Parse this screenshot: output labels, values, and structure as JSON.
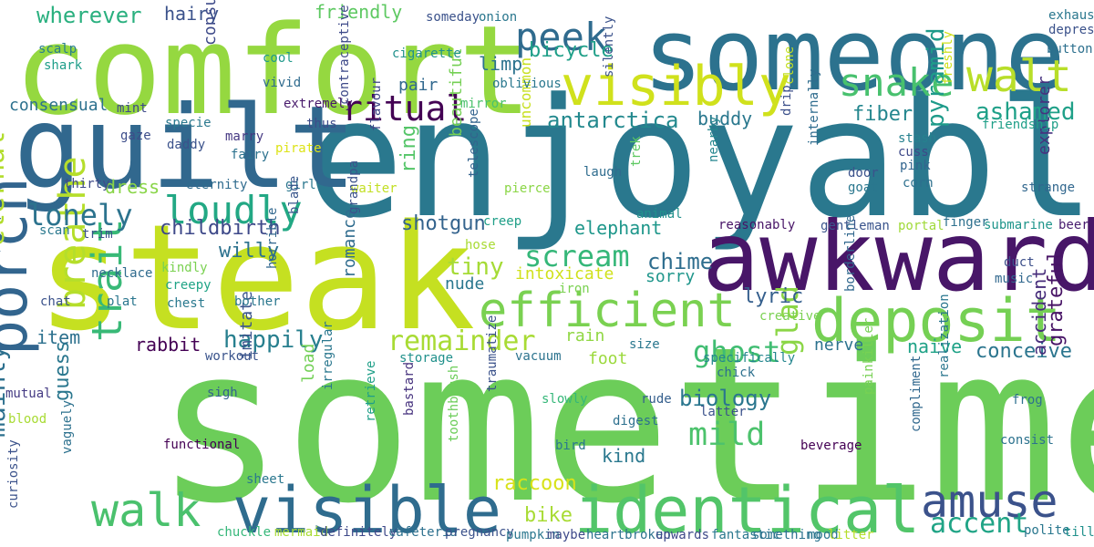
{
  "words": [
    {
      "text": "sometime",
      "color": "#6ccd59"
    },
    {
      "text": "enjoyable",
      "color": "#2a788e"
    },
    {
      "text": "steak",
      "color": "#c5e021"
    },
    {
      "text": "comfort",
      "color": "#95d840"
    },
    {
      "text": "someone",
      "color": "#2c728e"
    },
    {
      "text": "guilt",
      "color": "#31688e"
    },
    {
      "text": "awkward",
      "color": "#481668"
    },
    {
      "text": "visible",
      "color": "#2f6c8e"
    },
    {
      "text": "identical",
      "color": "#52c569"
    },
    {
      "text": "deposit",
      "color": "#75d054"
    },
    {
      "text": "porch",
      "color": "#32658e"
    },
    {
      "text": "visibly",
      "color": "#d0e11c"
    },
    {
      "text": "efficient",
      "color": "#7ad151"
    },
    {
      "text": "walk",
      "color": "#4ac16d"
    },
    {
      "text": "amuse",
      "color": "#3b528b"
    },
    {
      "text": "peek",
      "color": "#2f6b8e"
    },
    {
      "text": "snake",
      "color": "#48c16e"
    },
    {
      "text": "walt",
      "color": "#b8de29"
    },
    {
      "text": "trait",
      "color": "#38b977"
    },
    {
      "text": "breathe",
      "color": "#b5de2b"
    },
    {
      "text": "loudly",
      "color": "#22a884"
    },
    {
      "text": "ritual",
      "color": "#440154"
    },
    {
      "text": "lonely",
      "color": "#2c738e"
    },
    {
      "text": "scream",
      "color": "#35b779"
    },
    {
      "text": "remainder",
      "color": "#a8db34"
    },
    {
      "text": "glad",
      "color": "#8bd646"
    },
    {
      "text": "mild",
      "color": "#4cc26c"
    },
    {
      "text": "ghost",
      "color": "#40bd72"
    },
    {
      "text": "happily",
      "color": "#277f8e"
    },
    {
      "text": "antarctica",
      "color": "#23898e"
    },
    {
      "text": "eternal",
      "color": "#b2dd2d"
    },
    {
      "text": "mainly",
      "color": "#2d708e"
    },
    {
      "text": "accent",
      "color": "#20a486"
    },
    {
      "text": "ashamed",
      "color": "#1fa088"
    },
    {
      "text": "fiber",
      "color": "#24868e"
    },
    {
      "text": "pyramid",
      "color": "#1e9b8a"
    },
    {
      "text": "biology",
      "color": "#2a768e"
    },
    {
      "text": "wherever",
      "color": "#2ab07f"
    },
    {
      "text": "childbirth",
      "color": "#3e4989"
    },
    {
      "text": "tiny",
      "color": "#a5db36"
    },
    {
      "text": "bike",
      "color": "#a8db34"
    },
    {
      "text": "raccoon",
      "color": "#d8e219"
    },
    {
      "text": "chime",
      "color": "#2e6d8e"
    },
    {
      "text": "lyric",
      "color": "#355f8d"
    },
    {
      "text": "conceive",
      "color": "#2b758e"
    },
    {
      "text": "naive",
      "color": "#1fa287"
    },
    {
      "text": "grateful",
      "color": "#471365"
    },
    {
      "text": "accident",
      "color": "#472d7b"
    },
    {
      "text": "explorer",
      "color": "#46327e"
    },
    {
      "text": "guess",
      "color": "#2a778e"
    },
    {
      "text": "ring",
      "color": "#54c568"
    },
    {
      "text": "bicycle",
      "color": "#1f9f88"
    },
    {
      "text": "limp",
      "color": "#2c738e"
    },
    {
      "text": "buddy",
      "color": "#2a788e"
    },
    {
      "text": "item",
      "color": "#2d718e"
    },
    {
      "text": "rabbit",
      "color": "#440154"
    },
    {
      "text": "willy",
      "color": "#2c728e"
    },
    {
      "text": "shotgun",
      "color": "#33638d"
    },
    {
      "text": "elephant",
      "color": "#1f978b"
    },
    {
      "text": "dress",
      "color": "#89d548"
    },
    {
      "text": "beautiful",
      "color": "#75d054"
    },
    {
      "text": "hairy",
      "color": "#3b528b"
    },
    {
      "text": "friendly",
      "color": "#5ec962"
    },
    {
      "text": "consume",
      "color": "#3e4a89"
    },
    {
      "text": "pair",
      "color": "#31688e"
    },
    {
      "text": "kind",
      "color": "#2a788e"
    },
    {
      "text": "foot",
      "color": "#9bd93c"
    },
    {
      "text": "rain",
      "color": "#90d743"
    },
    {
      "text": "nude",
      "color": "#2a778e"
    },
    {
      "text": "sorry",
      "color": "#1f968b"
    },
    {
      "text": "intoxicate",
      "color": "#d0e11c"
    },
    {
      "text": "nerve",
      "color": "#2c728e"
    },
    {
      "text": "load",
      "color": "#73d056"
    },
    {
      "text": "imitate",
      "color": "#3a548c"
    },
    {
      "text": "romance",
      "color": "#2f6c8e"
    },
    {
      "text": "uncommon",
      "color": "#c8e020"
    },
    {
      "text": "consensual",
      "color": "#2d718e"
    },
    {
      "text": "cigarette",
      "color": "#21918c"
    },
    {
      "text": "oblivious",
      "color": "#2a788e"
    },
    {
      "text": "vivid",
      "color": "#2f6b8e"
    },
    {
      "text": "cool",
      "color": "#1f998a"
    },
    {
      "text": "extremely",
      "color": "#481a6c"
    },
    {
      "text": "mint",
      "color": "#3e4989"
    },
    {
      "text": "mirror",
      "color": "#4ac16d"
    },
    {
      "text": "shark",
      "color": "#1e9d89"
    },
    {
      "text": "scalp",
      "color": "#287d8e"
    },
    {
      "text": "specie",
      "color": "#2a788e"
    },
    {
      "text": "thus",
      "color": "#3e4c8a"
    },
    {
      "text": "gaze",
      "color": "#3d4d8a"
    },
    {
      "text": "marry",
      "color": "#453882"
    },
    {
      "text": "daddy",
      "color": "#3b528b"
    },
    {
      "text": "fairy",
      "color": "#2c728e"
    },
    {
      "text": "pirate",
      "color": "#dde318"
    },
    {
      "text": "thirty",
      "color": "#3e4a89"
    },
    {
      "text": "eternity",
      "color": "#2f6b8e"
    },
    {
      "text": "girl",
      "color": "#2a768e"
    },
    {
      "text": "waiter",
      "color": "#c2df23"
    },
    {
      "text": "flavour",
      "color": "#3f4788"
    },
    {
      "text": "telescope",
      "color": "#33638d"
    },
    {
      "text": "pierce",
      "color": "#8bd646"
    },
    {
      "text": "laugh",
      "color": "#2f6c8e"
    },
    {
      "text": "trek",
      "color": "#5ec962"
    },
    {
      "text": "drip",
      "color": "#3c508b"
    },
    {
      "text": "animal",
      "color": "#21918c"
    },
    {
      "text": "nearby",
      "color": "#24868e"
    },
    {
      "text": "internally",
      "color": "#2f6c8e"
    },
    {
      "text": "door",
      "color": "#3b528b"
    },
    {
      "text": "goat",
      "color": "#2a778e"
    },
    {
      "text": "pink",
      "color": "#32658e"
    },
    {
      "text": "corn",
      "color": "#2d708e"
    },
    {
      "text": "stash",
      "color": "#26818e"
    },
    {
      "text": "cuss",
      "color": "#3e4989"
    },
    {
      "text": "strange",
      "color": "#31678e"
    },
    {
      "text": "gentleman",
      "color": "#3a548c"
    },
    {
      "text": "portal",
      "color": "#a0da39"
    },
    {
      "text": "finger",
      "color": "#2d708e"
    },
    {
      "text": "submarine",
      "color": "#1f958b"
    },
    {
      "text": "beer",
      "color": "#481d6f"
    },
    {
      "text": "reasonably",
      "color": "#481467"
    },
    {
      "text": "creep",
      "color": "#1f9f88"
    },
    {
      "text": "hose",
      "color": "#a8db34"
    },
    {
      "text": "grandpa",
      "color": "#3b528b"
    },
    {
      "text": "blade",
      "color": "#39568c"
    },
    {
      "text": "scan",
      "color": "#2a788e"
    },
    {
      "text": "trim",
      "color": "#3b528b"
    },
    {
      "text": "necklace",
      "color": "#2f6b8e"
    },
    {
      "text": "kindly",
      "color": "#7ad151"
    },
    {
      "text": "creepy",
      "color": "#20a486"
    },
    {
      "text": "chest",
      "color": "#29798e"
    },
    {
      "text": "plat",
      "color": "#2a768e"
    },
    {
      "text": "chat",
      "color": "#3b528b"
    },
    {
      "text": "bother",
      "color": "#2a778e"
    },
    {
      "text": "horrible",
      "color": "#31678e"
    },
    {
      "text": "iron",
      "color": "#7ad151"
    },
    {
      "text": "creative",
      "color": "#7ad151"
    },
    {
      "text": "duct",
      "color": "#3c4f8a"
    },
    {
      "text": "music",
      "color": "#31688e"
    },
    {
      "text": "size",
      "color": "#2a778e"
    },
    {
      "text": "specifically",
      "color": "#24868e"
    },
    {
      "text": "storage",
      "color": "#21918c"
    },
    {
      "text": "vacuum",
      "color": "#2c738e"
    },
    {
      "text": "workout",
      "color": "#3a548c"
    },
    {
      "text": "chick",
      "color": "#2d708e"
    },
    {
      "text": "borderline",
      "color": "#31688e"
    },
    {
      "text": "sigh",
      "color": "#33638d"
    },
    {
      "text": "mutual",
      "color": "#443a83"
    },
    {
      "text": "irregular",
      "color": "#2a778e"
    },
    {
      "text": "bastard",
      "color": "#46327e"
    },
    {
      "text": "traumatize",
      "color": "#3b528b"
    },
    {
      "text": "slowly",
      "color": "#35b779"
    },
    {
      "text": "rude",
      "color": "#355f8d"
    },
    {
      "text": "digest",
      "color": "#2d708e"
    },
    {
      "text": "latter",
      "color": "#3b528b"
    },
    {
      "text": "painkiller",
      "color": "#77d153"
    },
    {
      "text": "frog",
      "color": "#2d708e"
    },
    {
      "text": "realization",
      "color": "#2a768e"
    },
    {
      "text": "blood",
      "color": "#a8db34"
    },
    {
      "text": "functional",
      "color": "#440154"
    },
    {
      "text": "retrieve",
      "color": "#1f9f88"
    },
    {
      "text": "toothbrush",
      "color": "#6ccd59"
    },
    {
      "text": "bird",
      "color": "#2a778e"
    },
    {
      "text": "beverage",
      "color": "#440154"
    },
    {
      "text": "consist",
      "color": "#2c728e"
    },
    {
      "text": "compliment",
      "color": "#31688e"
    },
    {
      "text": "curiosity",
      "color": "#3b528b"
    },
    {
      "text": "vaguely",
      "color": "#2d718e"
    },
    {
      "text": "sheet",
      "color": "#2a778e"
    },
    {
      "text": "chuckle",
      "color": "#35b779"
    },
    {
      "text": "mermaid",
      "color": "#a8db34"
    },
    {
      "text": "definitely",
      "color": "#3e4989"
    },
    {
      "text": "cafeteria",
      "color": "#2d708e"
    },
    {
      "text": "pregnancy",
      "color": "#3b528b"
    },
    {
      "text": "pumpkin",
      "color": "#2a778e"
    },
    {
      "text": "maybe",
      "color": "#3e4989"
    },
    {
      "text": "heartbroken",
      "color": "#2c738e"
    },
    {
      "text": "upwards",
      "color": "#3e4989"
    },
    {
      "text": "fantastic",
      "color": "#2a788e"
    },
    {
      "text": "something",
      "color": "#2c728e"
    },
    {
      "text": "mood",
      "color": "#2a778e"
    },
    {
      "text": "litter",
      "color": "#b5de2b"
    },
    {
      "text": "polite",
      "color": "#2a778e"
    },
    {
      "text": "till",
      "color": "#21918c"
    },
    {
      "text": "someday",
      "color": "#3b528b"
    },
    {
      "text": "onion",
      "color": "#2a778e"
    },
    {
      "text": "contraceptive",
      "color": "#3e4a89"
    },
    {
      "text": "silently",
      "color": "#3b528b"
    },
    {
      "text": "clone",
      "color": "#c2df23"
    },
    {
      "text": "freshly",
      "color": "#d0e11c"
    },
    {
      "text": "friendship",
      "color": "#1f9f88"
    },
    {
      "text": "exhaust",
      "color": "#2a778e"
    },
    {
      "text": "depress",
      "color": "#3b528b"
    },
    {
      "text": "button",
      "color": "#2d708e"
    }
  ]
}
